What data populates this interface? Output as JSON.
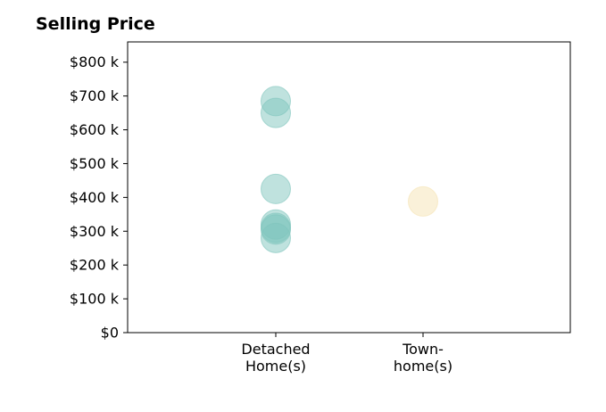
{
  "chart_data": {
    "type": "scatter",
    "title": "Selling Price",
    "xlabel": "",
    "ylabel": "",
    "categories": [
      [
        "Detached",
        "Home(s)"
      ],
      [
        "Town-",
        "home(s)"
      ]
    ],
    "y_ticks": [
      "$0",
      "$100 k",
      "$200 k",
      "$300 k",
      "$400 k",
      "$500 k",
      "$600 k",
      "$700 k",
      "$800 k"
    ],
    "y_tick_values": [
      0,
      100,
      200,
      300,
      400,
      500,
      600,
      700,
      800
    ],
    "ylim": [
      0,
      860
    ],
    "grid": false,
    "legend": "none",
    "series": [
      {
        "category": 0,
        "color": "#7fc5bd",
        "values": [
          685,
          650,
          425,
          320,
          310,
          305,
          280
        ]
      },
      {
        "category": 1,
        "color": "#f5e3b3",
        "values": [
          388
        ]
      }
    ]
  }
}
